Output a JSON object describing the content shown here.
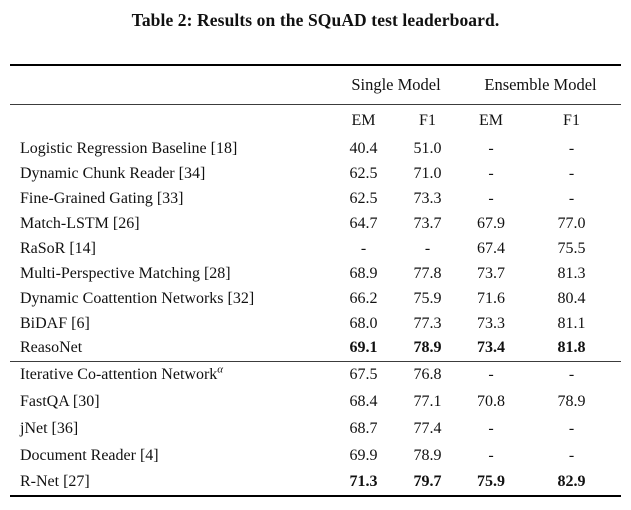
{
  "caption": "Table 2: Results on the SQuAD test leaderboard.",
  "table": {
    "group_headers": [
      "Single Model",
      "Ensemble Model"
    ],
    "sub_headers": [
      "EM",
      "F1",
      "EM",
      "F1"
    ],
    "sections": [
      {
        "rows": [
          {
            "model": "Logistic Regression Baseline [18]",
            "values": [
              "40.4",
              "51.0",
              "-",
              "-"
            ],
            "bold": false
          },
          {
            "model": "Dynamic Chunk Reader [34]",
            "values": [
              "62.5",
              "71.0",
              "-",
              "-"
            ],
            "bold": false
          },
          {
            "model": "Fine-Grained Gating [33]",
            "values": [
              "62.5",
              "73.3",
              "-",
              "-"
            ],
            "bold": false
          },
          {
            "model": "Match-LSTM [26]",
            "values": [
              "64.7",
              "73.7",
              "67.9",
              "77.0"
            ],
            "bold": false
          },
          {
            "model": "RaSoR [14]",
            "values": [
              "-",
              "-",
              "67.4",
              "75.5"
            ],
            "bold": false
          },
          {
            "model": "Multi-Perspective Matching [28]",
            "values": [
              "68.9",
              "77.8",
              "73.7",
              "81.3"
            ],
            "bold": false
          },
          {
            "model": "Dynamic Coattention Networks [32]",
            "values": [
              "66.2",
              "75.9",
              "71.6",
              "80.4"
            ],
            "bold": false
          },
          {
            "model": "BiDAF [6]",
            "values": [
              "68.0",
              "77.3",
              "73.3",
              "81.1"
            ],
            "bold": false
          },
          {
            "model": "ReasoNet",
            "values": [
              "69.1",
              "78.9",
              "73.4",
              "81.8"
            ],
            "bold": true
          }
        ]
      },
      {
        "rows": [
          {
            "model": "Iterative Co-attention Network",
            "model_sup": "α",
            "values": [
              "67.5",
              "76.8",
              "-",
              "-"
            ],
            "bold": false
          },
          {
            "model": "FastQA [30]",
            "values": [
              "68.4",
              "77.1",
              "70.8",
              "78.9"
            ],
            "bold": false
          },
          {
            "model": "jNet [36]",
            "values": [
              "68.7",
              "77.4",
              "-",
              "-"
            ],
            "bold": false
          },
          {
            "model": "Document Reader [4]",
            "values": [
              "69.9",
              "78.9",
              "-",
              "-"
            ],
            "bold": false
          },
          {
            "model": "R-Net [27]",
            "values": [
              "71.3",
              "79.7",
              "75.9",
              "82.9"
            ],
            "bold": true
          }
        ]
      }
    ]
  }
}
